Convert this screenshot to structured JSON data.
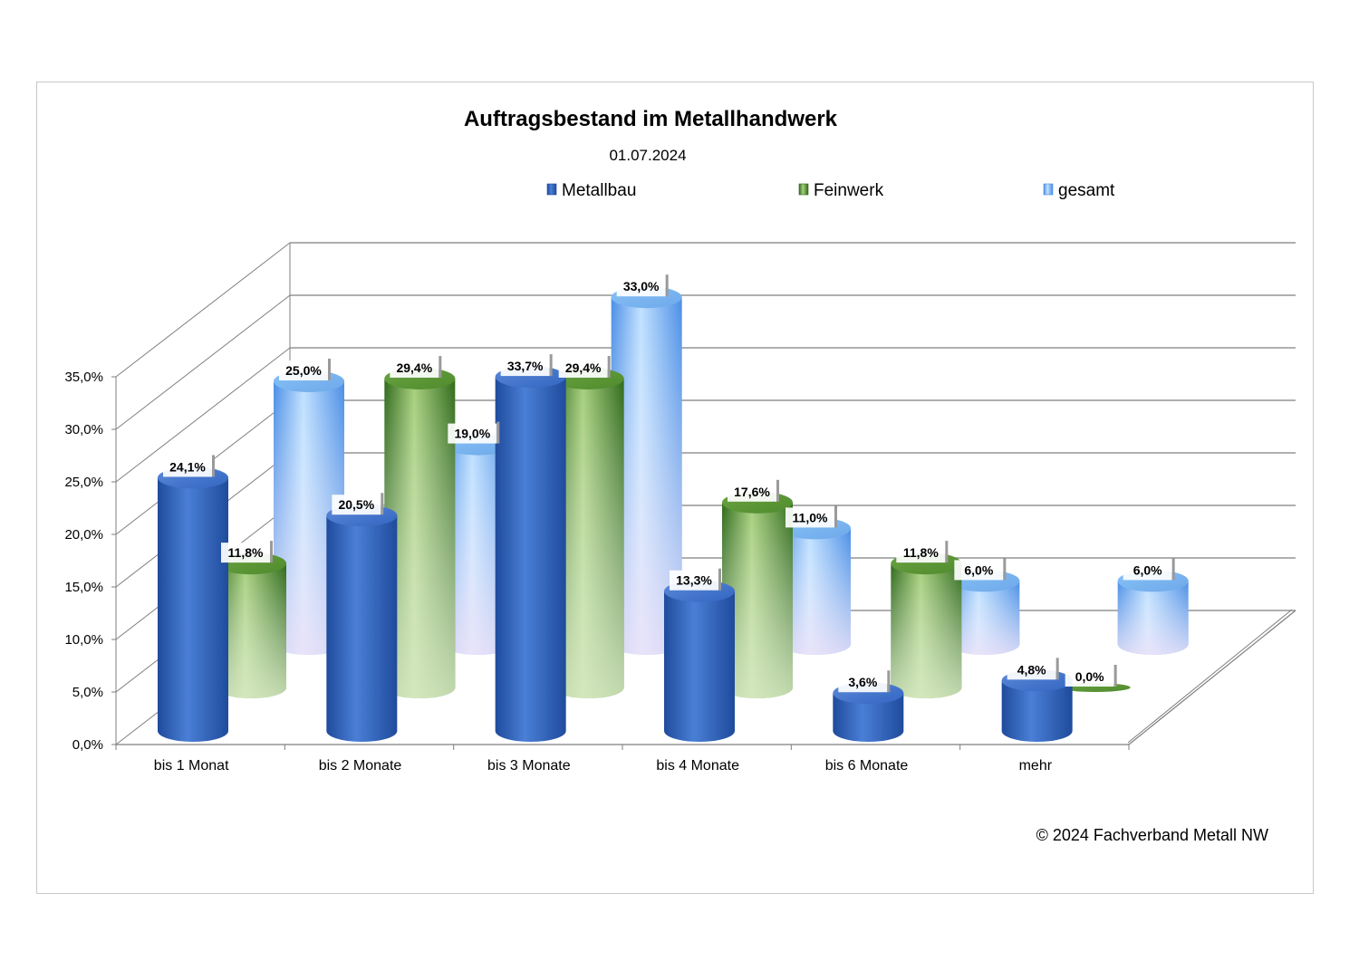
{
  "chart_data": {
    "type": "bar",
    "title": "Auftragsbestand im Metallhandwerk",
    "subtitle": "01.07.2024",
    "categories": [
      "bis 1 Monat",
      "bis 2 Monate",
      "bis 3 Monate",
      "bis 4 Monate",
      "bis 6 Monate",
      "mehr"
    ],
    "series": [
      {
        "name": "Metallbau",
        "values": [
          24.1,
          20.5,
          33.7,
          13.3,
          3.6,
          4.8
        ],
        "labels": [
          "24,1%",
          "20,5%",
          "33,7%",
          "13,3%",
          "3,6%",
          "4,8%"
        ],
        "color": "#3f6fc4"
      },
      {
        "name": "Feinwerk",
        "values": [
          11.8,
          29.4,
          29.4,
          17.6,
          11.8,
          0.0
        ],
        "labels": [
          "11,8%",
          "29,4%",
          "29,4%",
          "17,6%",
          "11,8%",
          "0,0%"
        ],
        "color": "#5f9e3a"
      },
      {
        "name": "gesamt",
        "values": [
          25.0,
          19.0,
          33.0,
          11.0,
          6.0,
          6.0
        ],
        "labels": [
          "25,0%",
          "19,0%",
          "33,0%",
          "11,0%",
          "6,0%",
          "6,0%"
        ],
        "color": "#79b7f0"
      }
    ],
    "yticks": [
      "0,0%",
      "5,0%",
      "10,0%",
      "15,0%",
      "20,0%",
      "25,0%",
      "30,0%",
      "35,0%"
    ],
    "ylim": [
      0,
      35
    ],
    "grid": true,
    "legend_position": "top",
    "style": "3d-cylinder"
  },
  "footer": "© 2024 Fachverband Metall NW"
}
